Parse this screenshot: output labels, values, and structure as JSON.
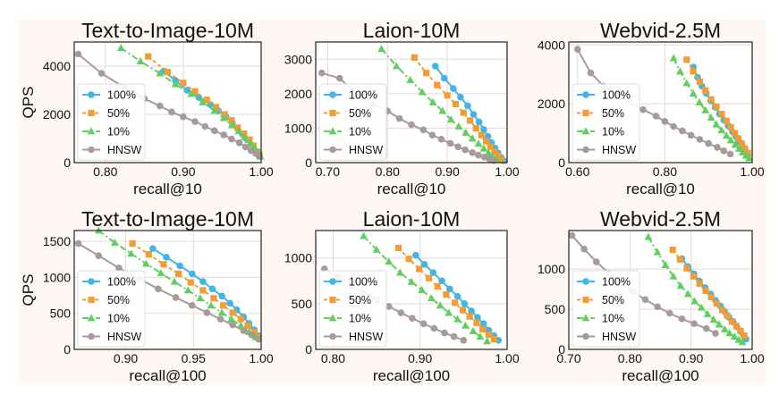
{
  "colors": {
    "figure_bg": "#fff7f4",
    "plot_bg": "#ffffff",
    "grid": "#e7d7d7",
    "series": {
      "100%": "#41b6e6",
      "50%": "#f39c34",
      "10%": "#5fd05f",
      "HNSW": "#a99a9a"
    }
  },
  "legend_position": "lower-left",
  "chart_data": [
    {
      "type": "line",
      "title": "Text-to-Image-10M",
      "xlabel": "recall@10",
      "ylabel": "QPS",
      "xlim": [
        0.76,
        1.0
      ],
      "ylim": [
        0,
        5000
      ],
      "xticks": [
        0.8,
        0.9,
        1.0
      ],
      "xtick_labels": [
        "0.80",
        "0.90",
        "1.00"
      ],
      "yticks": [
        0,
        2000,
        4000
      ],
      "ytick_labels": [
        "0",
        "2000",
        "4000"
      ],
      "legend": [
        "100%",
        "50%",
        "10%",
        "HNSW"
      ],
      "grid": true,
      "series": [
        {
          "name": "100%",
          "marker": "circle",
          "x": [
            0.875,
            0.89,
            0.905,
            0.92,
            0.935,
            0.945,
            0.955,
            0.963,
            0.97,
            0.976,
            0.982,
            0.987,
            0.991,
            0.995,
            0.998
          ],
          "y": [
            3800,
            3400,
            3000,
            2700,
            2400,
            2150,
            1900,
            1650,
            1400,
            1180,
            950,
            750,
            550,
            380,
            250
          ]
        },
        {
          "name": "50%",
          "marker": "square",
          "x": [
            0.855,
            0.88,
            0.9,
            0.915,
            0.93,
            0.942,
            0.953,
            0.962,
            0.97,
            0.978,
            0.985,
            0.99,
            0.995,
            0.998
          ],
          "y": [
            4400,
            3750,
            3300,
            2950,
            2600,
            2300,
            2000,
            1750,
            1450,
            1200,
            950,
            700,
            450,
            300
          ]
        },
        {
          "name": "10%",
          "marker": "triangle",
          "x": [
            0.82,
            0.845,
            0.87,
            0.89,
            0.91,
            0.925,
            0.94,
            0.952,
            0.962,
            0.971,
            0.979,
            0.986,
            0.992,
            0.996,
            0.999
          ],
          "y": [
            4750,
            4200,
            3700,
            3250,
            2850,
            2500,
            2150,
            1850,
            1550,
            1300,
            1050,
            800,
            600,
            400,
            250
          ]
        },
        {
          "name": "HNSW",
          "marker": "circle",
          "x": [
            0.765,
            0.795,
            0.825,
            0.85,
            0.87,
            0.885,
            0.9,
            0.915,
            0.928,
            0.94,
            0.952,
            0.962,
            0.972,
            0.98,
            0.987,
            0.993,
            0.997
          ],
          "y": [
            4500,
            3700,
            3100,
            2650,
            2350,
            2100,
            1900,
            1700,
            1500,
            1320,
            1150,
            980,
            820,
            650,
            500,
            380,
            280
          ]
        }
      ]
    },
    {
      "type": "line",
      "title": "Laion-10M",
      "xlabel": "recall@10",
      "ylabel": "",
      "xlim": [
        0.68,
        1.0
      ],
      "ylim": [
        0,
        3500
      ],
      "xticks": [
        0.7,
        0.8,
        0.9,
        1.0
      ],
      "xtick_labels": [
        "0.70",
        "0.80",
        "0.90",
        "1.00"
      ],
      "yticks": [
        0,
        1000,
        2000,
        3000
      ],
      "ytick_labels": [
        "0",
        "1000",
        "2000",
        "3000"
      ],
      "legend": [
        "100%",
        "50%",
        "10%",
        "HNSW"
      ],
      "grid": true,
      "series": [
        {
          "name": "100%",
          "marker": "circle",
          "x": [
            0.88,
            0.895,
            0.91,
            0.922,
            0.934,
            0.944,
            0.953,
            0.961,
            0.968,
            0.974,
            0.98,
            0.985,
            0.99,
            0.994
          ],
          "y": [
            2800,
            2450,
            2150,
            1900,
            1650,
            1400,
            1180,
            960,
            760,
            580,
            420,
            280,
            150,
            60
          ]
        },
        {
          "name": "50%",
          "marker": "square",
          "x": [
            0.845,
            0.865,
            0.883,
            0.9,
            0.914,
            0.927,
            0.938,
            0.948,
            0.957,
            0.965,
            0.972,
            0.979,
            0.985,
            0.99
          ],
          "y": [
            3050,
            2600,
            2250,
            1950,
            1700,
            1450,
            1220,
            1000,
            800,
            620,
            460,
            320,
            190,
            90
          ]
        },
        {
          "name": "10%",
          "marker": "triangle",
          "x": [
            0.79,
            0.815,
            0.838,
            0.858,
            0.876,
            0.892,
            0.906,
            0.919,
            0.931,
            0.942,
            0.952,
            0.961,
            0.969,
            0.976,
            0.983
          ],
          "y": [
            3300,
            2800,
            2400,
            2050,
            1750,
            1500,
            1250,
            1050,
            870,
            700,
            550,
            410,
            290,
            180,
            90
          ]
        },
        {
          "name": "HNSW",
          "marker": "circle",
          "x": [
            0.69,
            0.72,
            0.75,
            0.775,
            0.8,
            0.82,
            0.84,
            0.86,
            0.875,
            0.89,
            0.905,
            0.918,
            0.93,
            0.942,
            0.952,
            0.962,
            0.97,
            0.978
          ],
          "y": [
            2600,
            2450,
            1950,
            1700,
            1500,
            1280,
            1100,
            950,
            800,
            680,
            560,
            460,
            370,
            290,
            220,
            160,
            110,
            60
          ]
        }
      ]
    },
    {
      "type": "line",
      "title": "Webvid-2.5M",
      "xlabel": "recall@10",
      "ylabel": "",
      "xlim": [
        0.58,
        1.0
      ],
      "ylim": [
        0,
        4100
      ],
      "xticks": [
        0.6,
        0.8,
        1.0
      ],
      "xtick_labels": [
        "0.60",
        "0.80",
        "1.00"
      ],
      "yticks": [
        0,
        2000,
        4000
      ],
      "ytick_labels": [
        "0",
        "2000",
        "4000"
      ],
      "legend": [
        "100%",
        "50%",
        "10%",
        "HNSW"
      ],
      "grid": true,
      "series": [
        {
          "name": "100%",
          "marker": "circle",
          "x": [
            0.865,
            0.875,
            0.885,
            0.895,
            0.905,
            0.915,
            0.925,
            0.935,
            0.945,
            0.955,
            0.963,
            0.971,
            0.978,
            0.985,
            0.99
          ],
          "y": [
            3250,
            2900,
            2600,
            2350,
            2100,
            1880,
            1650,
            1450,
            1250,
            1050,
            880,
            700,
            540,
            380,
            250
          ]
        },
        {
          "name": "50%",
          "marker": "square",
          "x": [
            0.85,
            0.865,
            0.88,
            0.893,
            0.906,
            0.918,
            0.93,
            0.941,
            0.951,
            0.96,
            0.968,
            0.976,
            0.983,
            0.99
          ],
          "y": [
            3500,
            3100,
            2750,
            2450,
            2150,
            1900,
            1650,
            1420,
            1200,
            1000,
            820,
            640,
            480,
            320
          ]
        },
        {
          "name": "10%",
          "marker": "triangle",
          "x": [
            0.82,
            0.835,
            0.85,
            0.865,
            0.879,
            0.893,
            0.906,
            0.918,
            0.93,
            0.941,
            0.951,
            0.961,
            0.97,
            0.978,
            0.986,
            0.993
          ],
          "y": [
            3550,
            3100,
            2700,
            2350,
            2050,
            1780,
            1530,
            1300,
            1100,
            920,
            760,
            610,
            470,
            350,
            240,
            150
          ]
        },
        {
          "name": "HNSW",
          "marker": "circle",
          "x": [
            0.6,
            0.63,
            0.66,
            0.69,
            0.72,
            0.75,
            0.78,
            0.8,
            0.82,
            0.84,
            0.86,
            0.88,
            0.9,
            0.92,
            0.935,
            0.95
          ],
          "y": [
            3850,
            3050,
            2600,
            2300,
            2050,
            1800,
            1580,
            1400,
            1230,
            1080,
            930,
            790,
            650,
            520,
            400,
            290
          ]
        }
      ]
    },
    {
      "type": "line",
      "title": "Text-to-Image-10M",
      "xlabel": "recall@100",
      "ylabel": "QPS",
      "xlim": [
        0.862,
        1.0
      ],
      "ylim": [
        0,
        1650
      ],
      "xticks": [
        0.9,
        0.95,
        1.0
      ],
      "xtick_labels": [
        "0.90",
        "0.95",
        "1.00"
      ],
      "yticks": [
        0,
        500,
        1000,
        1500
      ],
      "ytick_labels": [
        "0",
        "500",
        "1000",
        "1500"
      ],
      "legend": [
        "100%",
        "50%",
        "10%",
        "HNSW"
      ],
      "grid": true,
      "series": [
        {
          "name": "100%",
          "marker": "circle",
          "x": [
            0.92,
            0.93,
            0.94,
            0.949,
            0.957,
            0.964,
            0.971,
            0.977,
            0.982,
            0.987,
            0.991,
            0.995,
            0.998
          ],
          "y": [
            1400,
            1280,
            1160,
            1050,
            940,
            840,
            740,
            640,
            550,
            450,
            360,
            270,
            190
          ]
        },
        {
          "name": "50%",
          "marker": "square",
          "x": [
            0.905,
            0.917,
            0.928,
            0.939,
            0.948,
            0.957,
            0.965,
            0.972,
            0.979,
            0.985,
            0.99,
            0.995,
            0.998
          ],
          "y": [
            1470,
            1320,
            1180,
            1050,
            930,
            820,
            710,
            610,
            510,
            420,
            330,
            240,
            170
          ]
        },
        {
          "name": "10%",
          "marker": "triangle",
          "x": [
            0.88,
            0.892,
            0.904,
            0.915,
            0.926,
            0.936,
            0.946,
            0.955,
            0.963,
            0.971,
            0.978,
            0.985,
            0.991,
            0.996
          ],
          "y": [
            1650,
            1480,
            1330,
            1190,
            1060,
            940,
            820,
            710,
            610,
            510,
            420,
            330,
            240,
            170
          ]
        },
        {
          "name": "HNSW",
          "marker": "circle",
          "x": [
            0.865,
            0.88,
            0.895,
            0.91,
            0.924,
            0.937,
            0.949,
            0.96,
            0.97,
            0.979,
            0.987,
            0.993,
            0.998
          ],
          "y": [
            1470,
            1300,
            1130,
            980,
            840,
            720,
            610,
            510,
            420,
            340,
            260,
            200,
            140
          ]
        }
      ]
    },
    {
      "type": "line",
      "title": "Laion-10M",
      "xlabel": "recall@100",
      "ylabel": "",
      "xlim": [
        0.78,
        1.0
      ],
      "ylim": [
        0,
        1300
      ],
      "xticks": [
        0.8,
        0.9,
        1.0
      ],
      "xtick_labels": [
        "0.80",
        "0.90",
        "1.00"
      ],
      "yticks": [
        0,
        500,
        1000
      ],
      "ytick_labels": [
        "0",
        "500",
        "1000"
      ],
      "legend": [
        "100%",
        "50%",
        "10%",
        "HNSW"
      ],
      "grid": true,
      "series": [
        {
          "name": "100%",
          "marker": "circle",
          "x": [
            0.895,
            0.905,
            0.915,
            0.925,
            0.934,
            0.943,
            0.951,
            0.959,
            0.966,
            0.973,
            0.979,
            0.985,
            0.99
          ],
          "y": [
            1030,
            930,
            840,
            750,
            660,
            580,
            500,
            420,
            350,
            280,
            210,
            150,
            100
          ]
        },
        {
          "name": "50%",
          "marker": "square",
          "x": [
            0.875,
            0.887,
            0.899,
            0.91,
            0.92,
            0.93,
            0.94,
            0.949,
            0.957,
            0.965,
            0.972,
            0.979,
            0.985
          ],
          "y": [
            1110,
            990,
            880,
            780,
            690,
            600,
            510,
            430,
            360,
            290,
            220,
            160,
            110
          ]
        },
        {
          "name": "10%",
          "marker": "triangle",
          "x": [
            0.835,
            0.85,
            0.864,
            0.877,
            0.89,
            0.902,
            0.913,
            0.923,
            0.933,
            0.943,
            0.952,
            0.961,
            0.969,
            0.977
          ],
          "y": [
            1240,
            1090,
            960,
            840,
            740,
            650,
            560,
            480,
            400,
            330,
            260,
            200,
            140,
            90
          ]
        },
        {
          "name": "HNSW",
          "marker": "circle",
          "x": [
            0.79,
            0.805,
            0.82,
            0.835,
            0.85,
            0.864,
            0.878,
            0.891,
            0.904,
            0.916,
            0.928,
            0.939,
            0.95
          ],
          "y": [
            880,
            790,
            700,
            620,
            540,
            470,
            400,
            340,
            280,
            230,
            180,
            140,
            100
          ]
        }
      ]
    },
    {
      "type": "line",
      "title": "Webvid-2.5M",
      "xlabel": "recall@100",
      "ylabel": "",
      "xlim": [
        0.7,
        1.0
      ],
      "ylim": [
        0,
        1480
      ],
      "xticks": [
        0.7,
        0.8,
        0.9,
        1.0
      ],
      "xtick_labels": [
        "0.70",
        "0.80",
        "0.90",
        "1.00"
      ],
      "yticks": [
        0,
        500,
        1000
      ],
      "ytick_labels": [
        "0",
        "500",
        "1000"
      ],
      "legend": [
        "100%",
        "50%",
        "10%",
        "HNSW"
      ],
      "grid": true,
      "series": [
        {
          "name": "100%",
          "marker": "circle",
          "x": [
            0.885,
            0.895,
            0.905,
            0.914,
            0.923,
            0.932,
            0.94,
            0.948,
            0.955,
            0.962,
            0.969,
            0.975,
            0.981,
            0.986,
            0.99
          ],
          "y": [
            1130,
            1030,
            940,
            850,
            770,
            690,
            610,
            540,
            470,
            400,
            340,
            280,
            220,
            170,
            130
          ]
        },
        {
          "name": "50%",
          "marker": "square",
          "x": [
            0.87,
            0.882,
            0.893,
            0.904,
            0.914,
            0.924,
            0.933,
            0.942,
            0.951,
            0.959,
            0.967,
            0.974,
            0.981,
            0.987
          ],
          "y": [
            1240,
            1120,
            1010,
            910,
            820,
            730,
            650,
            570,
            490,
            420,
            350,
            290,
            230,
            170
          ]
        },
        {
          "name": "10%",
          "marker": "triangle",
          "x": [
            0.83,
            0.845,
            0.858,
            0.871,
            0.883,
            0.895,
            0.906,
            0.917,
            0.927,
            0.937,
            0.946,
            0.955,
            0.963,
            0.971,
            0.978,
            0.984
          ],
          "y": [
            1400,
            1210,
            1050,
            910,
            790,
            690,
            600,
            520,
            440,
            370,
            310,
            250,
            200,
            160,
            120,
            90
          ]
        },
        {
          "name": "HNSW",
          "marker": "circle",
          "x": [
            0.705,
            0.725,
            0.745,
            0.765,
            0.785,
            0.805,
            0.825,
            0.845,
            0.865,
            0.885,
            0.905,
            0.925,
            0.94
          ],
          "y": [
            1420,
            1250,
            1090,
            950,
            830,
            720,
            620,
            530,
            450,
            380,
            320,
            260,
            200
          ]
        }
      ]
    }
  ]
}
